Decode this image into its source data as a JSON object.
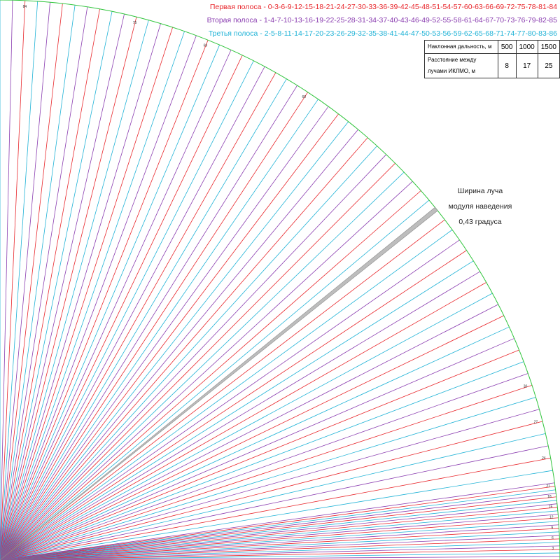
{
  "legend": [
    {
      "text": "Первая полоса - 0-3-6-9-12-15-18-21-24-27-30-33-36-39-42-45-48-51-54-57-60-63-66-69-72-75-78-81-84",
      "color": "#e8262b"
    },
    {
      "text": "Вторая полоса - 1-4-7-10-13-16-19-22-25-28-31-34-37-40-43-46-49-52-55-58-61-64-67-70-73-76-79-82-85",
      "color": "#8a3db0"
    },
    {
      "text": "Третья полоса - 2-5-8-11-14-17-20-23-26-29-32-35-38-41-44-47-50-53-56-59-62-65-68-71-74-77-80-83-86",
      "color": "#1fb2d6"
    }
  ],
  "params_table": {
    "row1_label": "Наклонная дальность, м",
    "row2_label": "Расстояние между лучами ИКЛМО, м",
    "ranges": [
      "500",
      "1000",
      "1500"
    ],
    "spacings": [
      "8",
      "17",
      "25"
    ]
  },
  "beam_note": {
    "line1": "Ширина луча",
    "line2": "модуля наведения",
    "line3": "0,43 градуса"
  },
  "arc_labels": [
    "84",
    "75",
    "69",
    "60",
    "30",
    "27",
    "24",
    "21",
    "18",
    "15",
    "12",
    "9",
    "6",
    "3"
  ],
  "colors": {
    "band1": "#e8262b",
    "band2": "#8a3db0",
    "band3": "#1fb2d6",
    "arc": "#2ec43a",
    "guidance_beam": "#bdbdbd"
  }
}
